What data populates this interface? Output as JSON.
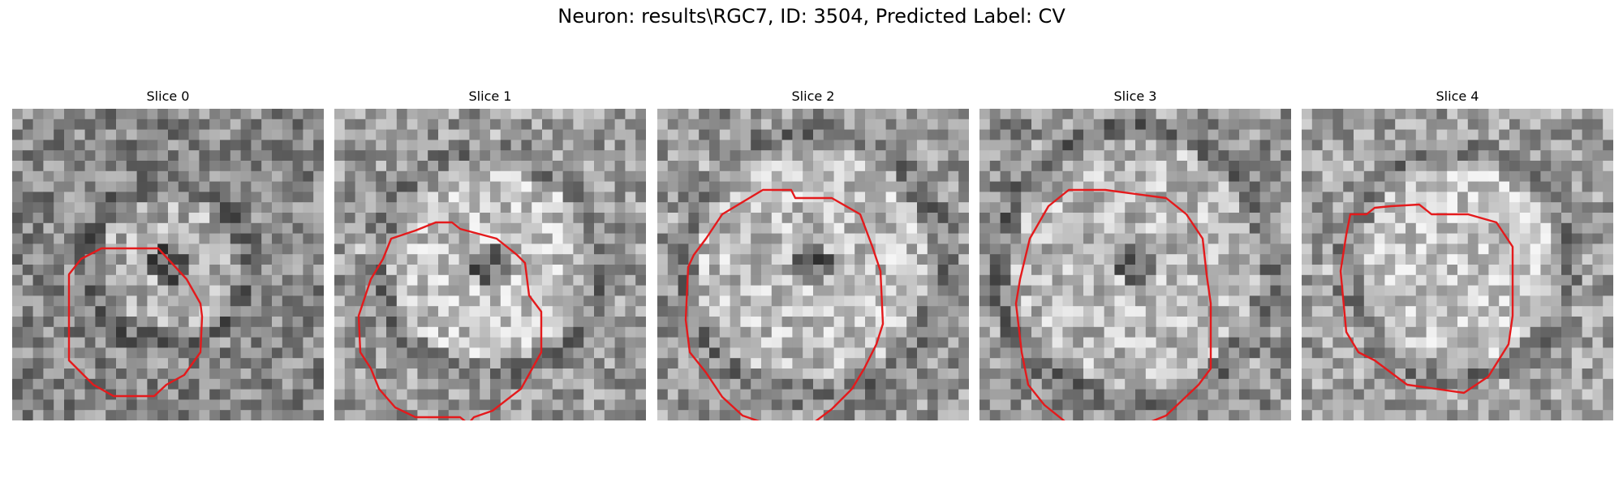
{
  "title": "Neuron: results\\RGC7, ID: 3504, Predicted Label: CV",
  "colors": {
    "contour": "#e41a1c",
    "colormap": "gray"
  },
  "panels": [
    {
      "title": "Slice 0"
    },
    {
      "title": "Slice 1"
    },
    {
      "title": "Slice 2"
    },
    {
      "title": "Slice 3"
    },
    {
      "title": "Slice 4"
    }
  ]
}
